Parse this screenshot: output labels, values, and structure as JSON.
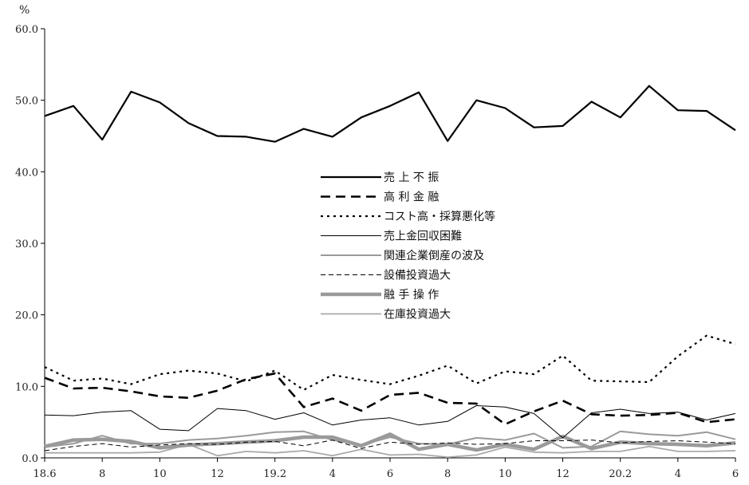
{
  "chart_data": {
    "type": "line",
    "title": "",
    "unit_label": "%",
    "xlabel": "",
    "ylabel": "",
    "ylim": [
      0,
      60
    ],
    "yticks": [
      "0.0",
      "10.0",
      "20.0",
      "30.0",
      "40.0",
      "50.0",
      "60.0"
    ],
    "grid": false,
    "legend_placement": "center",
    "x_tick_labels": [
      "18.6",
      "8",
      "10",
      "12",
      "19.2",
      "4",
      "6",
      "8",
      "10",
      "12",
      "20.2",
      "4",
      "6"
    ],
    "x": [
      "18.6",
      "18.7",
      "18.8",
      "18.9",
      "18.10",
      "18.11",
      "18.12",
      "19.1",
      "19.2",
      "19.3",
      "19.4",
      "19.5",
      "19.6",
      "19.7",
      "19.8",
      "19.9",
      "19.10",
      "19.11",
      "19.12",
      "20.1",
      "20.2",
      "20.3",
      "20.4",
      "20.5",
      "20.6"
    ],
    "series": [
      {
        "name": "売 上 不 振",
        "style": "solid-thick",
        "color": "#000000",
        "values": [
          47.8,
          49.2,
          44.5,
          51.2,
          49.7,
          46.8,
          45.0,
          44.9,
          44.2,
          46.0,
          44.9,
          47.6,
          49.2,
          51.1,
          44.3,
          50.0,
          48.9,
          46.2,
          46.4,
          49.8,
          47.6,
          52.0,
          48.6,
          48.5,
          45.8
        ]
      },
      {
        "name": "高 利 金 融",
        "style": "dashed-thick",
        "color": "#000000",
        "values": [
          11.2,
          9.7,
          9.8,
          9.3,
          8.6,
          8.4,
          9.4,
          11.0,
          11.8,
          7.1,
          8.3,
          6.6,
          8.8,
          9.1,
          7.7,
          7.6,
          4.7,
          6.5,
          8.0,
          6.1,
          5.9,
          6.0,
          6.3,
          5.0,
          5.4
        ]
      },
      {
        "name": "コスト高・採算悪化等",
        "style": "dotted",
        "color": "#000000",
        "values": [
          12.7,
          10.8,
          11.1,
          10.3,
          11.7,
          12.2,
          11.8,
          10.7,
          12.2,
          9.5,
          11.6,
          10.9,
          10.3,
          11.5,
          12.9,
          10.4,
          12.1,
          11.7,
          14.3,
          10.8,
          10.7,
          10.6,
          14.2,
          17.1,
          15.9
        ]
      },
      {
        "name": "売上金回収困難",
        "style": "solid-thin",
        "color": "#000000",
        "values": [
          6.0,
          5.9,
          6.4,
          6.6,
          4.0,
          3.8,
          6.9,
          6.6,
          5.4,
          6.3,
          4.6,
          5.3,
          5.6,
          4.6,
          5.1,
          7.3,
          7.1,
          6.2,
          2.8,
          6.3,
          6.8,
          6.2,
          6.4,
          5.3,
          6.2
        ]
      },
      {
        "name": "関連企業倒産の波及",
        "style": "solid-gray",
        "color": "#9a9a9a",
        "values": [
          1.5,
          2.0,
          3.1,
          2.0,
          2.0,
          2.5,
          2.7,
          3.1,
          3.6,
          3.7,
          2.5,
          1.8,
          2.9,
          2.0,
          1.9,
          2.8,
          2.5,
          3.4,
          1.4,
          1.6,
          3.7,
          3.3,
          3.1,
          3.6,
          2.6
        ]
      },
      {
        "name": "設備投資過大",
        "style": "dashed-thin",
        "color": "#000000",
        "values": [
          1.0,
          1.6,
          2.0,
          1.5,
          1.8,
          2.0,
          1.9,
          2.2,
          2.3,
          1.7,
          2.5,
          1.3,
          2.2,
          1.9,
          2.1,
          1.9,
          2.0,
          2.4,
          2.4,
          2.5,
          2.1,
          2.3,
          2.4,
          2.2,
          2.0
        ]
      },
      {
        "name": "融 手 操 作",
        "style": "solid-gray-thick",
        "color": "#9a9a9a",
        "values": [
          1.6,
          2.5,
          2.6,
          2.3,
          1.4,
          1.8,
          2.0,
          2.2,
          2.4,
          2.9,
          2.9,
          1.7,
          3.3,
          1.2,
          1.9,
          1.1,
          1.9,
          1.2,
          3.0,
          1.3,
          2.2,
          2.0,
          1.9,
          1.7,
          2.1
        ]
      },
      {
        "name": "在庫投資過大",
        "style": "solid-gray-thin",
        "color": "#aaaaaa",
        "values": [
          0.7,
          0.7,
          0.7,
          0.7,
          0.8,
          1.9,
          0.3,
          0.9,
          0.7,
          1.0,
          0.3,
          1.2,
          0.4,
          0.5,
          0.1,
          0.4,
          1.5,
          0.8,
          0.7,
          0.9,
          0.9,
          1.6,
          0.9,
          0.9,
          1.0
        ]
      }
    ]
  }
}
